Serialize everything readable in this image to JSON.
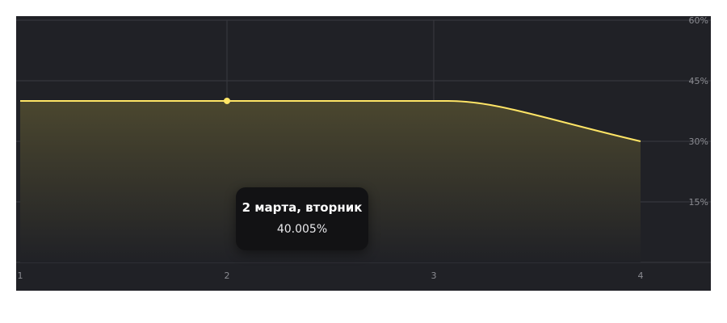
{
  "chart_data": {
    "type": "area",
    "x": [
      1,
      2,
      3,
      4
    ],
    "series": [
      {
        "values": [
          40.0,
          40.005,
          40.0,
          30.0
        ]
      }
    ],
    "xticks": [
      "1",
      "2",
      "3",
      "4"
    ],
    "yticks": [
      "15%",
      "30%",
      "45%",
      "60%"
    ],
    "xlim": [
      1,
      4.34
    ],
    "ylim": [
      0,
      60
    ],
    "y_axis_side": "right",
    "grid": true,
    "highlighted_x": 2,
    "colors": {
      "line": "#ffe566",
      "fill": "#4b472f",
      "background": "#202126",
      "grid": "#3a3b41",
      "tick": "#8b8c92"
    }
  },
  "tooltip": {
    "title": "2 марта, вторник",
    "value": "40.005%"
  }
}
